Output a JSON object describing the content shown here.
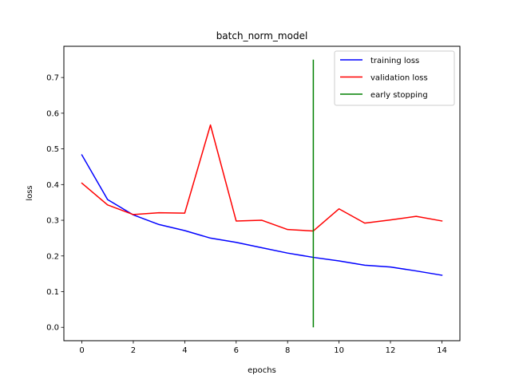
{
  "chart_data": {
    "type": "line",
    "title": "batch_norm_model",
    "xlabel": "epochs",
    "ylabel": "loss",
    "xlim": [
      -0.7,
      14.7
    ],
    "ylim": [
      -0.0375,
      0.7875
    ],
    "xticks": [
      0,
      2,
      4,
      6,
      8,
      10,
      12,
      14
    ],
    "yticks": [
      0.0,
      0.1,
      0.2,
      0.3,
      0.4,
      0.5,
      0.6,
      0.7
    ],
    "xtick_labels": [
      "0",
      "2",
      "4",
      "6",
      "8",
      "10",
      "12",
      "14"
    ],
    "ytick_labels": [
      "0.0",
      "0.1",
      "0.2",
      "0.3",
      "0.4",
      "0.5",
      "0.6",
      "0.7"
    ],
    "grid": false,
    "legend_position": "top-right",
    "x": [
      0,
      1,
      2,
      3,
      4,
      5,
      6,
      7,
      8,
      9,
      10,
      11,
      12,
      13,
      14
    ],
    "series": [
      {
        "name": "training loss",
        "color": "#0000ff",
        "values": [
          0.483,
          0.358,
          0.315,
          0.288,
          0.271,
          0.25,
          0.238,
          0.223,
          0.208,
          0.196,
          0.186,
          0.174,
          0.169,
          0.158,
          0.146
        ]
      },
      {
        "name": "validation loss",
        "color": "#ff0000",
        "values": [
          0.404,
          0.343,
          0.316,
          0.321,
          0.32,
          0.567,
          0.298,
          0.3,
          0.274,
          0.27,
          0.332,
          0.292,
          0.301,
          0.311,
          0.298
        ]
      }
    ],
    "vlines": [
      {
        "name": "early stopping",
        "color": "#008000",
        "x": 9,
        "ymin": 0.0,
        "ymax": 0.75
      }
    ]
  }
}
